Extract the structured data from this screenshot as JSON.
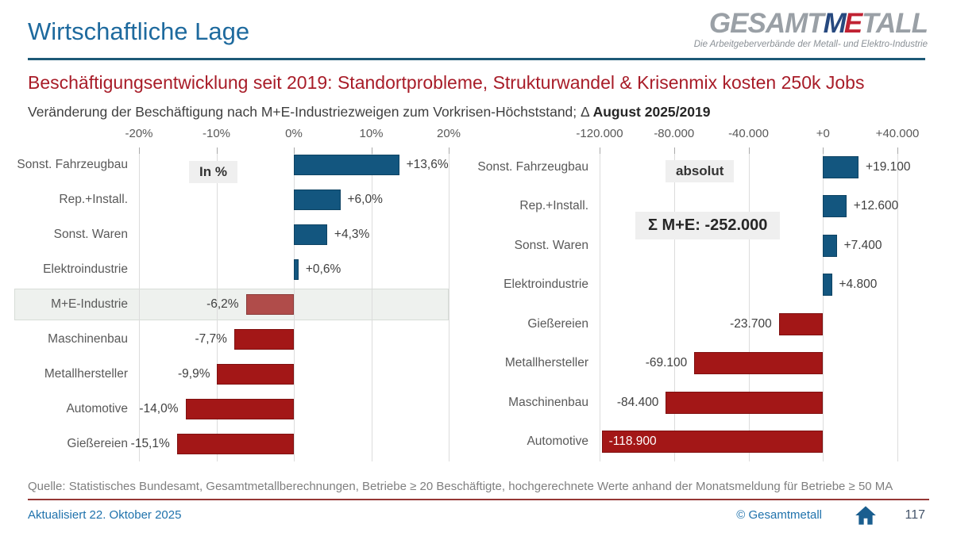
{
  "page": {
    "title": "Wirtschaftliche Lage",
    "logo": {
      "word_gray1": "GESAMT",
      "word_blue": "M",
      "word_red": "E",
      "word_gray2": "TALL",
      "tagline": "Die Arbeitgeberverbände der Metall- und Elektro-Industrie"
    },
    "headline": "Beschäftigungsentwicklung seit 2019: Standortprobleme, Strukturwandel & Krisenmix kosten 250k Jobs",
    "subtitle_plain": "Veränderung der Beschäftigung nach M+E-Industriezweigen zum Vorkrisen-Höchststand; Δ ",
    "subtitle_bold": "August 2025/2019",
    "source": "Quelle:  Statistisches Bundesamt,  Gesamtmetallberechnungen,   Betriebe ≥ 20 Beschäftigte,  hochgerechnete  Werte anhand der Monatsmeldung  für Betriebe ≥ 50 MA",
    "footer": {
      "updated": "Aktualisiert 22. Oktober 2025",
      "copyright": "© Gesamtmetall",
      "home_icon": "home-icon",
      "page_number": "117"
    }
  },
  "colors": {
    "positive_bar": "#13567f",
    "negative_bar": "#a31717",
    "highlight_bar": "#b04c4a",
    "title_blue": "#1e6a9e",
    "headline_red": "#a81c28",
    "rule_blue": "#1d5976",
    "rule_red": "#953735",
    "footer_blue": "#1f72ac",
    "page_number_gray": "#44546a"
  },
  "chart_data": [
    {
      "type": "bar",
      "orientation": "horizontal",
      "unit_label": "In %",
      "legend_position": "none",
      "grid": true,
      "axis": {
        "min": -20,
        "max": 20,
        "ticks": [
          {
            "value": -20,
            "label": "-20%"
          },
          {
            "value": -10,
            "label": "-10%"
          },
          {
            "value": 0,
            "label": "0%"
          },
          {
            "value": 10,
            "label": "10%"
          },
          {
            "value": 20,
            "label": "20%"
          }
        ]
      },
      "rows": [
        {
          "category": "Sonst. Fahrzeugbau",
          "value": 13.6,
          "value_label": "+13,6%"
        },
        {
          "category": "Rep.+Install.",
          "value": 6.0,
          "value_label": "+6,0%"
        },
        {
          "category": "Sonst. Waren",
          "value": 4.3,
          "value_label": "+4,3%"
        },
        {
          "category": "Elektroindustrie",
          "value": 0.6,
          "value_label": "+0,6%"
        },
        {
          "category": "M+E-Industrie",
          "value": -6.2,
          "value_label": "-6,2%",
          "highlight": true
        },
        {
          "category": "Maschinenbau",
          "value": -7.7,
          "value_label": "-7,7%"
        },
        {
          "category": "Metallhersteller",
          "value": -9.9,
          "value_label": "-9,9%"
        },
        {
          "category": "Automotive",
          "value": -14.0,
          "value_label": "-14,0%"
        },
        {
          "category": "Gießereien",
          "value": -15.1,
          "value_label": "-15,1%"
        }
      ]
    },
    {
      "type": "bar",
      "orientation": "horizontal",
      "unit_label": "absolut",
      "annotation": "Σ M+E: -252.000",
      "legend_position": "none",
      "grid": true,
      "axis": {
        "min": -120000,
        "max": 40000,
        "ticks": [
          {
            "value": -120000,
            "label": "-120.000"
          },
          {
            "value": -80000,
            "label": "-80.000"
          },
          {
            "value": -40000,
            "label": "-40.000"
          },
          {
            "value": 0,
            "label": "+0"
          },
          {
            "value": 40000,
            "label": "+40.000"
          }
        ]
      },
      "rows": [
        {
          "category": "Sonst. Fahrzeugbau",
          "value": 19100,
          "value_label": "+19.100"
        },
        {
          "category": "Rep.+Install.",
          "value": 12600,
          "value_label": "+12.600"
        },
        {
          "category": "Sonst. Waren",
          "value": 7400,
          "value_label": "+7.400"
        },
        {
          "category": "Elektroindustrie",
          "value": 4800,
          "value_label": "+4.800"
        },
        {
          "category": "Gießereien",
          "value": -23700,
          "value_label": "-23.700"
        },
        {
          "category": "Metallhersteller",
          "value": -69100,
          "value_label": "-69.100"
        },
        {
          "category": "Maschinenbau",
          "value": -84400,
          "value_label": "-84.400"
        },
        {
          "category": "Automotive",
          "value": -118900,
          "value_label": "-118.900",
          "value_inside": true
        }
      ]
    }
  ]
}
